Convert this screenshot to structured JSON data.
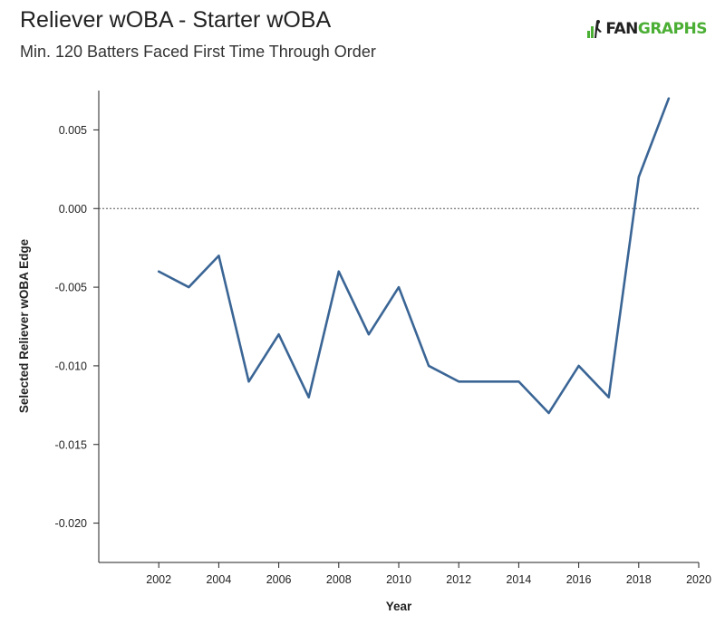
{
  "header": {
    "title": "Reliever wOBA - Starter wOBA",
    "subtitle": "Min. 120 Batters Faced First Time Through Order"
  },
  "logo": {
    "part1": "FAN",
    "part2": "GRAPHS",
    "accent": "#4caf35"
  },
  "chart_data": {
    "type": "line",
    "title": "Reliever wOBA - Starter wOBA",
    "subtitle": "Min. 120 Batters Faced First Time Through Order",
    "xlabel": "Year",
    "ylabel": "Selected Reliever wOBA Edge",
    "xlim": [
      2000,
      2020
    ],
    "ylim": [
      -0.0225,
      0.0075
    ],
    "x_ticks": [
      2002,
      2004,
      2006,
      2008,
      2010,
      2012,
      2014,
      2016,
      2018,
      2020
    ],
    "x_tick_labels": [
      "2002",
      "2004",
      "2006",
      "2008",
      "2010",
      "2012",
      "2014",
      "2016",
      "2018",
      "2020"
    ],
    "y_ticks": [
      0.005,
      0.0,
      -0.005,
      -0.01,
      -0.015,
      -0.02
    ],
    "y_tick_labels": [
      "0.005",
      "0.000",
      "-0.005",
      "-0.010",
      "-0.015",
      "-0.020"
    ],
    "reference_line": {
      "y": 0,
      "style": "dotted"
    },
    "grid": false,
    "line_color": "#3a6595",
    "series": [
      {
        "x": [
          2002,
          2003,
          2004,
          2005,
          2006,
          2007,
          2008,
          2009,
          2010,
          2011,
          2012,
          2013,
          2014,
          2015,
          2016,
          2017,
          2018,
          2019
        ],
        "values": [
          -0.004,
          -0.005,
          -0.003,
          -0.011,
          -0.008,
          -0.012,
          -0.004,
          -0.008,
          -0.005,
          -0.01,
          -0.011,
          -0.011,
          -0.011,
          -0.013,
          -0.01,
          -0.012,
          0.002,
          0.007
        ]
      }
    ]
  }
}
